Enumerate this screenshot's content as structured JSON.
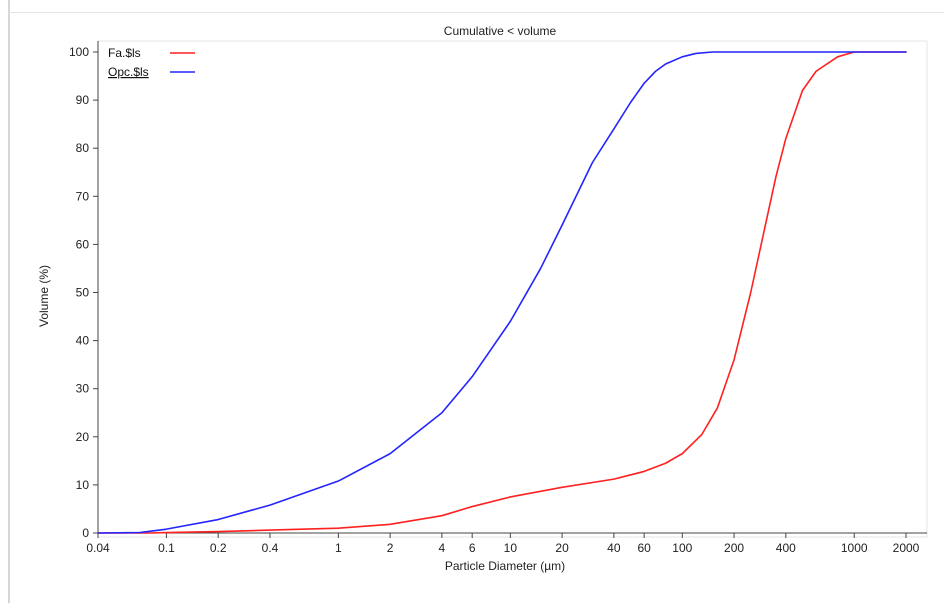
{
  "chart_data": {
    "type": "line",
    "title": "Cumulative < volume",
    "xlabel": "Particle Diameter (µm)",
    "ylabel": "Volume (%)",
    "xscale": "log",
    "xlim": [
      0.04,
      2000
    ],
    "ylim": [
      0,
      100
    ],
    "x_ticks": [
      0.04,
      0.1,
      0.2,
      0.4,
      1,
      2,
      4,
      6,
      10,
      20,
      40,
      60,
      100,
      200,
      400,
      1000,
      2000
    ],
    "x_tick_labels": [
      "0.04",
      "0.1",
      "0.2",
      "0.4",
      "1",
      "2",
      "4",
      "6",
      "10",
      "20",
      "40",
      "60",
      "100",
      "200",
      "400",
      "1000",
      "2000"
    ],
    "y_ticks": [
      0,
      10,
      20,
      30,
      40,
      50,
      60,
      70,
      80,
      90,
      100
    ],
    "y_tick_labels": [
      "0",
      "10",
      "20",
      "30",
      "40",
      "50",
      "60",
      "70",
      "80",
      "90",
      "100"
    ],
    "grid": false,
    "legend_position": "top-left",
    "series": [
      {
        "name": "Fa.$ls",
        "color": "#ff2020",
        "x": [
          0.04,
          0.08,
          0.1,
          0.2,
          0.4,
          1,
          2,
          4,
          6,
          10,
          20,
          40,
          60,
          80,
          100,
          130,
          160,
          200,
          250,
          300,
          350,
          400,
          500,
          600,
          800,
          1000,
          1200,
          1500,
          2000
        ],
        "y": [
          0,
          0,
          0.1,
          0.3,
          0.6,
          1.0,
          1.8,
          3.6,
          5.5,
          7.5,
          9.5,
          11.2,
          12.8,
          14.5,
          16.5,
          20.5,
          26,
          36,
          50,
          63,
          74,
          82,
          92,
          96,
          99,
          100,
          100,
          100,
          100
        ]
      },
      {
        "name": "Opc.$ls",
        "color": "#2424ff",
        "x": [
          0.04,
          0.07,
          0.1,
          0.2,
          0.4,
          1,
          2,
          4,
          6,
          10,
          15,
          20,
          30,
          40,
          50,
          60,
          70,
          80,
          100,
          120,
          150,
          200,
          400,
          1000,
          2000
        ],
        "y": [
          0,
          0.1,
          0.8,
          2.8,
          5.8,
          10.8,
          16.5,
          25,
          32.5,
          44,
          55,
          64,
          77,
          84,
          89.5,
          93.5,
          96,
          97.5,
          99,
          99.7,
          100,
          100,
          100,
          100,
          100
        ]
      }
    ]
  }
}
